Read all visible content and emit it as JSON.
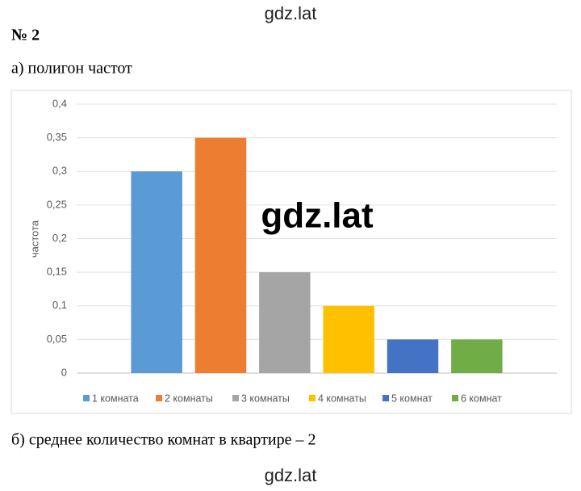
{
  "header": {
    "watermark": "gdz.lat",
    "number": "№ 2",
    "part_a": "а) полигон частот"
  },
  "chart_data": {
    "type": "bar",
    "y_label": "частота",
    "watermark": "gdz.lat",
    "categories": [
      null
    ],
    "series": [
      {
        "name": "1 комната",
        "color": "#5b9bd5",
        "values": [
          0.3
        ]
      },
      {
        "name": "2 комнаты",
        "color": "#ed7d31",
        "values": [
          0.35
        ]
      },
      {
        "name": "3 комнаты",
        "color": "#a5a5a5",
        "values": [
          0.15
        ]
      },
      {
        "name": "4 комнаты",
        "color": "#ffc000",
        "values": [
          0.1
        ]
      },
      {
        "name": "5 комнат",
        "color": "#4472c4",
        "values": [
          0.05
        ]
      },
      {
        "name": "6 комнат",
        "color": "#70ad47",
        "values": [
          0.05
        ]
      }
    ],
    "ylim": [
      0,
      0.4
    ],
    "yticks": [
      0,
      {
        "value": 0.05,
        "label": "0,05"
      },
      {
        "value": 0.1,
        "label": "0,1"
      },
      {
        "value": 0.15,
        "label": "0,15"
      },
      {
        "value": 0.2,
        "label": "0,2"
      },
      {
        "value": 0.25,
        "label": "0,25"
      },
      {
        "value": 0.3,
        "label": "0,3"
      },
      {
        "value": 0.35,
        "label": "0,35"
      },
      {
        "value": 0.4,
        "label": "0,4"
      }
    ],
    "grid": true,
    "legend": "bottom"
  },
  "part_b": "б) среднее количество комнат в квартире – 2",
  "footer": "gdz.lat"
}
